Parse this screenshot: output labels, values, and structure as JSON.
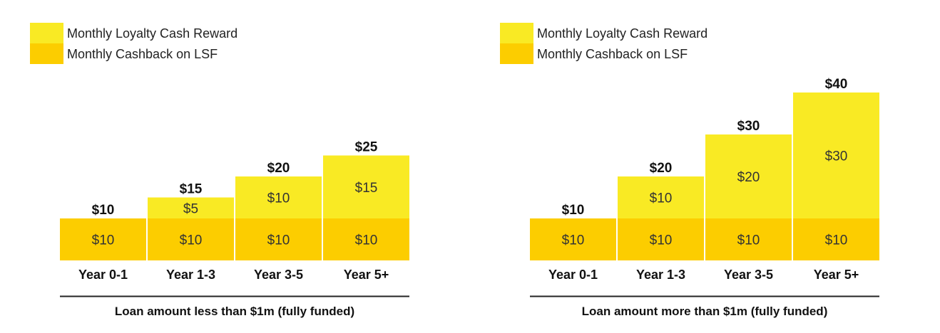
{
  "colors": {
    "loyalty_reward": "#F9EA24",
    "cashback_lsf": "#FCCD00",
    "text": "#111111",
    "segment_text": "#333333",
    "divider": "#222222",
    "bar_separator": "#ffffff"
  },
  "chart_data": [
    {
      "type": "bar",
      "stacked": true,
      "legend_position": "top-left",
      "legend": [
        "Monthly Loyalty Cash Reward",
        "Monthly Cashback on LSF"
      ],
      "categories": [
        "Year 0-1",
        "Year 1-3",
        "Year 3-5",
        "Year 5+"
      ],
      "series": [
        {
          "name": "Monthly Cashback on LSF",
          "values": [
            10,
            10,
            10,
            10
          ],
          "labels": [
            "$10",
            "$10",
            "$10",
            "$10"
          ]
        },
        {
          "name": "Monthly Loyalty Cash Reward",
          "values": [
            0,
            5,
            10,
            15
          ],
          "labels": [
            "",
            "$5",
            "$10",
            "$15"
          ]
        }
      ],
      "totals": [
        10,
        15,
        20,
        25
      ],
      "total_labels": [
        "$10",
        "$15",
        "$20",
        "$25"
      ],
      "xlabel": "Loan amount less than $1m (fully funded)",
      "ylim": [
        0,
        40
      ],
      "grid": false
    },
    {
      "type": "bar",
      "stacked": true,
      "legend_position": "top-left",
      "legend": [
        "Monthly Loyalty Cash Reward",
        "Monthly Cashback on LSF"
      ],
      "categories": [
        "Year 0-1",
        "Year 1-3",
        "Year 3-5",
        "Year 5+"
      ],
      "series": [
        {
          "name": "Monthly Cashback on LSF",
          "values": [
            10,
            10,
            10,
            10
          ],
          "labels": [
            "$10",
            "$10",
            "$10",
            "$10"
          ]
        },
        {
          "name": "Monthly Loyalty Cash Reward",
          "values": [
            0,
            10,
            20,
            30
          ],
          "labels": [
            "",
            "$10",
            "$20",
            "$30"
          ]
        }
      ],
      "totals": [
        10,
        20,
        30,
        40
      ],
      "total_labels": [
        "$10",
        "$20",
        "$30",
        "$40"
      ],
      "xlabel": "Loan amount more than $1m (fully funded)",
      "ylim": [
        0,
        40
      ],
      "grid": false
    }
  ]
}
